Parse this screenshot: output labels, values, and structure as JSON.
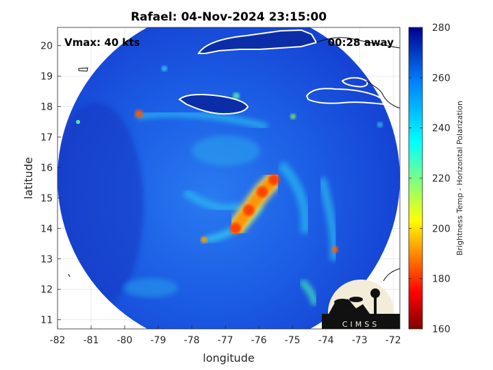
{
  "title": "Rafael: 04-Nov-2024 23:15:00",
  "annotations": {
    "vmax": "Vmax: 40 kts",
    "time_away": "00:28 away"
  },
  "logo": {
    "text": "CIMSS"
  },
  "colors": {
    "ocean_cold": "#0b2ea8",
    "land_fill": "#ffffff",
    "coastline": "#000000"
  },
  "chart_data": {
    "type": "heatmap",
    "title": "Rafael: 04-Nov-2024 23:15:00",
    "xlabel": "longitude",
    "ylabel": "latitude",
    "xlim": [
      -82,
      -71.8
    ],
    "ylim": [
      10.7,
      20.6
    ],
    "xticks": [
      "-82",
      "-81",
      "-80",
      "-79",
      "-78",
      "-77",
      "-76",
      "-75",
      "-74",
      "-73",
      "-72"
    ],
    "yticks": [
      "11",
      "12",
      "13",
      "14",
      "15",
      "16",
      "17",
      "18",
      "19",
      "20"
    ],
    "grid": true,
    "colorbar": {
      "label": "Brightness Temp - Horizontal Polarization",
      "range": [
        160,
        280
      ],
      "ticks": [
        "160",
        "180",
        "200",
        "220",
        "240",
        "260",
        "280"
      ],
      "colormap": "jet"
    },
    "swath": {
      "center_lon": -76.9,
      "center_lat": 15.65,
      "radius_deg": 5.1
    },
    "storm_center": {
      "lon": -76.1,
      "lat": 14.9
    },
    "warm_band": [
      {
        "lon": -76.7,
        "lat": 14.0,
        "temp": 190
      },
      {
        "lon": -76.3,
        "lat": 14.6,
        "temp": 185
      },
      {
        "lon": -75.9,
        "lat": 15.2,
        "temp": 188
      },
      {
        "lon": -75.55,
        "lat": 15.6,
        "temp": 195
      }
    ]
  }
}
